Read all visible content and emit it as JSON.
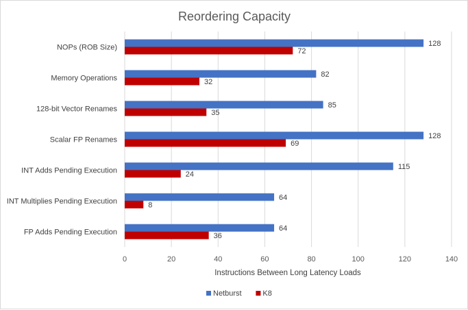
{
  "chart_data": {
    "type": "bar",
    "orientation": "horizontal",
    "title": "Reordering Capacity",
    "xlabel": "Instructions Between Long Latency Loads",
    "ylabel": "",
    "xlim": [
      0,
      140
    ],
    "x_ticks": [
      0,
      20,
      40,
      60,
      80,
      100,
      120,
      140
    ],
    "grid": true,
    "legend_position": "bottom",
    "categories": [
      "NOPs (ROB Size)",
      "Memory Operations",
      "128-bit Vector Renames",
      "Scalar FP Renames",
      "INT Adds Pending Execution",
      "INT Multiplies Pending Execution",
      "FP Adds Pending Execution"
    ],
    "series": [
      {
        "name": "Netburst",
        "color": "#4472C4",
        "values": [
          128,
          82,
          85,
          128,
          115,
          64,
          64
        ]
      },
      {
        "name": "K8",
        "color": "#C00000",
        "values": [
          72,
          32,
          35,
          69,
          24,
          8,
          36
        ]
      }
    ]
  }
}
